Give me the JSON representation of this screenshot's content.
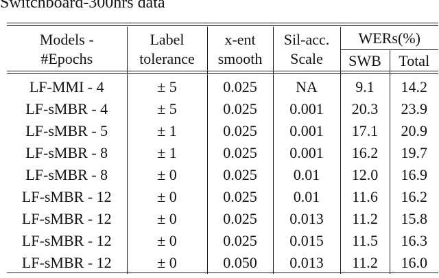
{
  "caption": "Switchboard-300hrs data",
  "colors": {
    "text": "#111111",
    "rule": "#1c1c1c",
    "background": "#ffffff"
  },
  "table": {
    "column_ids": [
      "model",
      "label-tolerance",
      "xent-smooth",
      "silacc-scale",
      "wer-swb",
      "wer-total"
    ],
    "header": {
      "models": [
        "Models -",
        "#Epochs"
      ],
      "tolerance": [
        "Label",
        "tolerance"
      ],
      "xent": [
        "x-ent",
        "smooth"
      ],
      "silacc": [
        "Sil-acc.",
        "Scale"
      ],
      "wer_group": "WERs(%)",
      "wer_sub": [
        "SWB",
        "Total"
      ]
    },
    "rows": [
      [
        "LF-MMI - 4",
        "± 5",
        "0.025",
        "NA",
        "9.1",
        "14.2"
      ],
      [
        "LF-sMBR - 4",
        "± 5",
        "0.025",
        "0.001",
        "20.3",
        "23.9"
      ],
      [
        "LF-sMBR - 5",
        "± 1",
        "0.025",
        "0.001",
        "17.1",
        "20.9"
      ],
      [
        "LF-sMBR - 8",
        "± 1",
        "0.025",
        "0.001",
        "16.2",
        "19.7"
      ],
      [
        "LF-sMBR - 8",
        "± 0",
        "0.025",
        "0.01",
        "12.0",
        "16.9"
      ],
      [
        "LF-sMBR - 12",
        "± 0",
        "0.025",
        "0.01",
        "11.6",
        "16.2"
      ],
      [
        "LF-sMBR - 12",
        "± 0",
        "0.025",
        "0.013",
        "11.2",
        "15.8"
      ],
      [
        "LF-sMBR - 12",
        "± 0",
        "0.025",
        "0.015",
        "11.5",
        "16.3"
      ],
      [
        "LF-sMBR - 12",
        "± 0",
        "0.050",
        "0.013",
        "11.2",
        "16.0"
      ]
    ],
    "bold_cells": [
      [
        6,
        4
      ],
      [
        6,
        5
      ]
    ]
  }
}
